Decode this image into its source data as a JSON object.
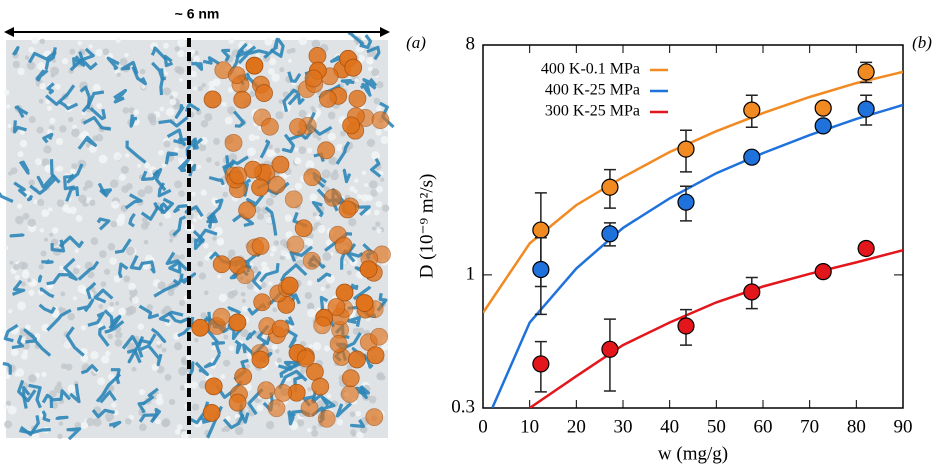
{
  "panel_a": {
    "scale_label": "~ 6 nm",
    "panel_label": "(a)"
  },
  "chart_data": {
    "type": "scatter",
    "panel_label": "(b)",
    "x_label": "w (mg/g)",
    "y_label": "D (10⁻⁹ m²/s)",
    "xlim": [
      0,
      90
    ],
    "xticks": [
      0,
      10,
      20,
      30,
      40,
      50,
      60,
      70,
      80,
      90
    ],
    "ylim": [
      0.3,
      8
    ],
    "yticks": [
      0.3,
      1,
      8
    ],
    "log_y": true,
    "legend": "upper-left",
    "series": [
      {
        "name": "400 K-0.1 MPa",
        "color": "#f28a22",
        "x": [
          12.4,
          27.2,
          43.5,
          57.6,
          72.9,
          82.1
        ],
        "values": [
          1.5,
          2.21,
          3.12,
          4.44,
          4.52,
          6.27
        ],
        "errors": [
          0.6,
          0.38,
          0.58,
          0.64,
          0.2,
          0.57
        ],
        "fit_x": [
          0,
          10,
          20,
          30,
          40,
          50,
          60,
          70,
          80,
          90
        ],
        "fit_values": [
          0.71,
          1.33,
          1.88,
          2.42,
          3.04,
          3.67,
          4.32,
          5.0,
          5.67,
          6.27
        ]
      },
      {
        "name": "400 K-25 MPa",
        "color": "#1f72dc",
        "x": [
          12.4,
          27.2,
          43.5,
          57.6,
          72.9,
          82.1
        ],
        "values": [
          1.05,
          1.45,
          1.93,
          2.9,
          3.85,
          4.48
        ],
        "errors": [
          0.35,
          0.15,
          0.3,
          0.12,
          0.1,
          0.6
        ],
        "fit_x": [
          2,
          10,
          20,
          30,
          40,
          50,
          60,
          70,
          80,
          90
        ],
        "fit_values": [
          0.3,
          0.65,
          1.06,
          1.53,
          2.0,
          2.51,
          3.01,
          3.54,
          4.1,
          4.65
        ]
      },
      {
        "name": "300 K-25 MPa",
        "color": "#e3161c",
        "x": [
          12.4,
          27.2,
          43.5,
          57.6,
          72.9,
          82.1
        ],
        "values": [
          0.447,
          0.51,
          0.63,
          0.857,
          1.03,
          1.27
        ],
        "errors": [
          0.1,
          0.16,
          0.1,
          0.12,
          0.05,
          0
        ],
        "fit_x": [
          10,
          20,
          30,
          40,
          50,
          60,
          70,
          80,
          90
        ],
        "fit_values": [
          0.3,
          0.4,
          0.53,
          0.65,
          0.78,
          0.9,
          1.01,
          1.12,
          1.25
        ]
      }
    ]
  }
}
